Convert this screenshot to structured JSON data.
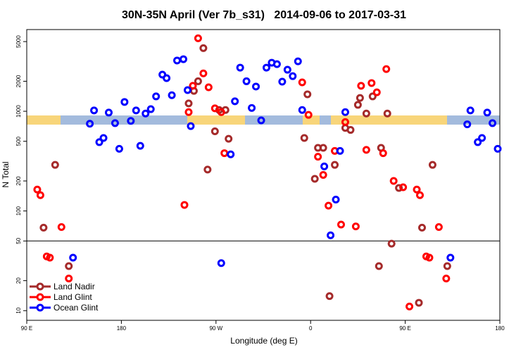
{
  "chart_data": {
    "type": "scatter",
    "title": "30N-35N April (Ver 7b_s31)   2014-09-06 to 2017-03-31",
    "x_label": "Longitude (deg E)",
    "y_label": "N Total",
    "xlim": [
      90,
      540
    ],
    "xticks": [
      {
        "value": 90,
        "label": "90 E"
      },
      180,
      {
        "value": 270,
        "label": "90 W"
      },
      {
        "value": 360,
        "label": "0"
      },
      {
        "value": 450,
        "label": "90 E"
      },
      {
        "value": 540,
        "label": "180"
      }
    ],
    "ylim": [
      8,
      6600
    ],
    "log_y": true,
    "yticks": [
      10,
      20,
      50,
      100,
      200,
      500,
      1000,
      2000,
      5000
    ],
    "hline": 50,
    "legend": "bottomleft",
    "series": [
      {
        "name": "Land Nadir",
        "color": "#a52a2a",
        "x": [
          106,
          117,
          130,
          244,
          249,
          253,
          258,
          262,
          269,
          273,
          279,
          282,
          357,
          354,
          364,
          367,
          372,
          383,
          393,
          398,
          405,
          407,
          413,
          419,
          427,
          433,
          437,
          444,
          425,
          463,
          466,
          476,
          490,
          378
        ],
        "values": [
          68,
          290,
          28,
          1200,
          1600,
          2000,
          4300,
          260,
          630,
          1030,
          1030,
          530,
          1480,
          540,
          210,
          430,
          430,
          290,
          680,
          650,
          1160,
          1360,
          950,
          1410,
          430,
          950,
          47,
          170,
          28,
          12,
          68,
          290,
          28,
          14
        ]
      },
      {
        "name": "Land Glint",
        "color": "#ff0000",
        "x": [
          100,
          103,
          109,
          112,
          123,
          130,
          240,
          244,
          248,
          253,
          258,
          263,
          269,
          275,
          278,
          352,
          358,
          367,
          372,
          377,
          383,
          389,
          393,
          403,
          408,
          413,
          418,
          423,
          429,
          432,
          439,
          448,
          461,
          464,
          470,
          473,
          482,
          489,
          454
        ],
        "values": [
          164,
          144,
          35,
          34,
          69,
          21,
          115,
          980,
          1800,
          5400,
          2400,
          1740,
          1070,
          980,
          380,
          1950,
          920,
          350,
          230,
          113,
          400,
          73,
          780,
          70,
          1800,
          410,
          1920,
          1550,
          380,
          2650,
          200,
          173,
          164,
          144,
          35,
          34,
          69,
          21,
          11
        ]
      },
      {
        "name": "Ocean Glint",
        "color": "#0000ff",
        "x": [
          134,
          150,
          154,
          159,
          163,
          168,
          174,
          178,
          183,
          189,
          194,
          198,
          203,
          208,
          213,
          219,
          223,
          228,
          233,
          239,
          243,
          246,
          275,
          284,
          288,
          293,
          299,
          304,
          308,
          313,
          318,
          323,
          328,
          333,
          338,
          343,
          348,
          352,
          373,
          384,
          388,
          379,
          393,
          493,
          509,
          512,
          519,
          523,
          528,
          533,
          538
        ],
        "values": [
          34,
          750,
          1020,
          490,
          540,
          970,
          760,
          420,
          1240,
          800,
          1020,
          450,
          950,
          1050,
          1410,
          2330,
          2150,
          1450,
          3230,
          3330,
          1630,
          710,
          30,
          370,
          1260,
          2740,
          2000,
          1080,
          1770,
          810,
          2740,
          3070,
          2970,
          1980,
          2610,
          2250,
          3170,
          1030,
          280,
          130,
          400,
          57,
          980,
          34,
          740,
          1020,
          490,
          540,
          970,
          760,
          420
        ]
      }
    ]
  }
}
